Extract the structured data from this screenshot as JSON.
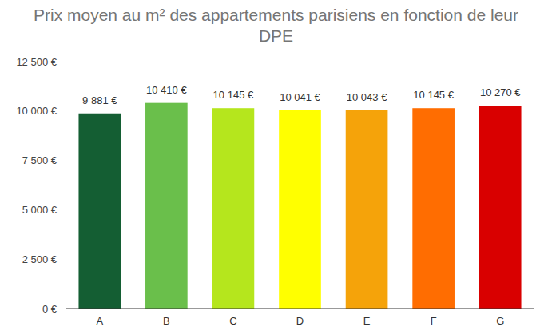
{
  "chart_data": {
    "type": "bar",
    "title": "Prix moyen au m² des appartements parisiens en fonction de leur DPE",
    "categories": [
      "A",
      "B",
      "C",
      "D",
      "E",
      "F",
      "G"
    ],
    "values": [
      9881,
      10410,
      10145,
      10041,
      10043,
      10145,
      10270
    ],
    "value_labels": [
      "9 881 €",
      "10 410 €",
      "10 145 €",
      "10 041 €",
      "10 043 €",
      "10 145 €",
      "10 270 €"
    ],
    "colors": [
      "#145e33",
      "#6abf4b",
      "#b5e61d",
      "#ffff00",
      "#f5a30a",
      "#ff6d01",
      "#d90000"
    ],
    "ylim": [
      0,
      12500
    ],
    "yticks": [
      {
        "value": 0,
        "label": "0 €"
      },
      {
        "value": 2500,
        "label": "2 500 €"
      },
      {
        "value": 5000,
        "label": "5 000 €"
      },
      {
        "value": 7500,
        "label": "7 500 €"
      },
      {
        "value": 10000,
        "label": "10 000 €"
      },
      {
        "value": 12500,
        "label": "12 500 €"
      }
    ],
    "grid": false,
    "data_labels": true
  }
}
